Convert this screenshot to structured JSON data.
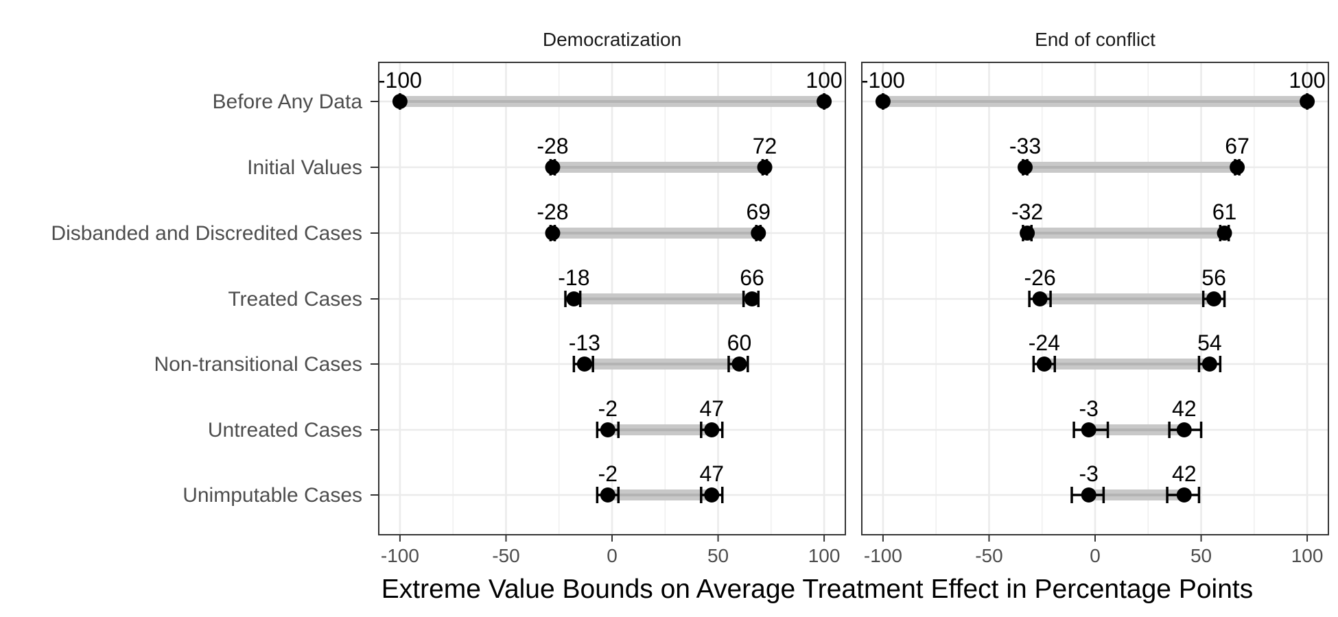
{
  "chart_data": {
    "type": "dot-range",
    "xlabel": "Extreme Value Bounds on Average Treatment Effect in Percentage Points",
    "xlim": [
      -110,
      110
    ],
    "xticks": [
      -100,
      -50,
      0,
      50,
      100
    ],
    "xtick_labels": [
      "-100",
      "-50",
      "0",
      "50",
      "100"
    ],
    "grid": true,
    "categories": [
      "Before Any Data",
      "Initial Values",
      "Disbanded and Discredited Cases",
      "Treated Cases",
      "Non-transitional Cases",
      "Untreated Cases",
      "Unimputable Cases"
    ],
    "panels": [
      {
        "title": "Democratization",
        "rows": [
          {
            "lower": -100,
            "upper": 100,
            "lower_label": "-100",
            "upper_label": "100",
            "lower_ci": [
              -100,
              -100
            ],
            "upper_ci": [
              100,
              100
            ]
          },
          {
            "lower": -28,
            "upper": 72,
            "lower_label": "-28",
            "upper_label": "72",
            "lower_ci": [
              -29,
              -27
            ],
            "upper_ci": [
              71,
              73
            ]
          },
          {
            "lower": -28,
            "upper": 69,
            "lower_label": "-28",
            "upper_label": "69",
            "lower_ci": [
              -29,
              -27
            ],
            "upper_ci": [
              68,
              70
            ]
          },
          {
            "lower": -18,
            "upper": 66,
            "lower_label": "-18",
            "upper_label": "66",
            "lower_ci": [
              -22,
              -15
            ],
            "upper_ci": [
              62,
              69
            ]
          },
          {
            "lower": -13,
            "upper": 60,
            "lower_label": "-13",
            "upper_label": "60",
            "lower_ci": [
              -18,
              -9
            ],
            "upper_ci": [
              55,
              64
            ]
          },
          {
            "lower": -2,
            "upper": 47,
            "lower_label": "-2",
            "upper_label": "47",
            "lower_ci": [
              -7,
              3
            ],
            "upper_ci": [
              42,
              52
            ]
          },
          {
            "lower": -2,
            "upper": 47,
            "lower_label": "-2",
            "upper_label": "47",
            "lower_ci": [
              -7,
              3
            ],
            "upper_ci": [
              42,
              52
            ]
          }
        ]
      },
      {
        "title": "End of conflict",
        "rows": [
          {
            "lower": -100,
            "upper": 100,
            "lower_label": "-100",
            "upper_label": "100",
            "lower_ci": [
              -100,
              -100
            ],
            "upper_ci": [
              100,
              100
            ]
          },
          {
            "lower": -33,
            "upper": 67,
            "lower_label": "-33",
            "upper_label": "67",
            "lower_ci": [
              -34,
              -32
            ],
            "upper_ci": [
              66,
              68
            ]
          },
          {
            "lower": -32,
            "upper": 61,
            "lower_label": "-32",
            "upper_label": "61",
            "lower_ci": [
              -34,
              -30
            ],
            "upper_ci": [
              59,
              63
            ]
          },
          {
            "lower": -26,
            "upper": 56,
            "lower_label": "-26",
            "upper_label": "56",
            "lower_ci": [
              -31,
              -21
            ],
            "upper_ci": [
              51,
              61
            ]
          },
          {
            "lower": -24,
            "upper": 54,
            "lower_label": "-24",
            "upper_label": "54",
            "lower_ci": [
              -29,
              -19
            ],
            "upper_ci": [
              49,
              59
            ]
          },
          {
            "lower": -3,
            "upper": 42,
            "lower_label": "-3",
            "upper_label": "42",
            "lower_ci": [
              -10,
              6
            ],
            "upper_ci": [
              35,
              50
            ]
          },
          {
            "lower": -3,
            "upper": 42,
            "lower_label": "-3",
            "upper_label": "42",
            "lower_ci": [
              -11,
              4
            ],
            "upper_ci": [
              34,
              49
            ]
          }
        ]
      }
    ],
    "colors": {
      "range_bar": "#c8c8c8",
      "range_center": "#b4b4b4",
      "point": "#000000",
      "grid": "#ebebeb",
      "panel_border": "#333333"
    }
  }
}
